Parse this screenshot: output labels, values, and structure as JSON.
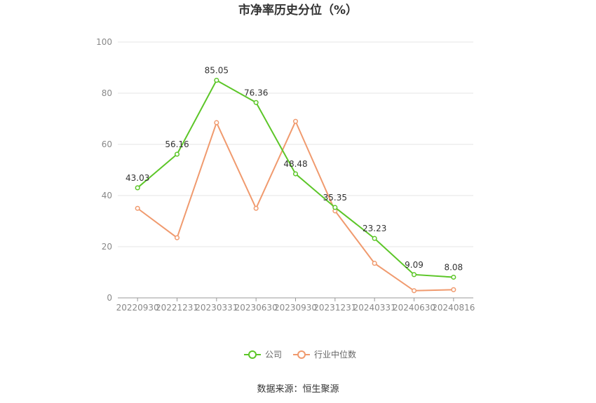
{
  "chart_data": {
    "type": "line",
    "title": "市净率历史分位（%）",
    "xlabel": "",
    "ylabel": "",
    "ylim": [
      0,
      100
    ],
    "yticks": [
      0,
      20,
      40,
      60,
      80,
      100
    ],
    "grid": true,
    "legend_position": "bottom",
    "categories": [
      "20220930",
      "20221231",
      "20230331",
      "20230630",
      "20230930",
      "20231231",
      "20240331",
      "20240630",
      "20240816"
    ],
    "series": [
      {
        "name": "公司",
        "color": "#5cc628",
        "values": [
          43.03,
          56.16,
          85.05,
          76.36,
          48.48,
          35.35,
          23.23,
          9.09,
          8.08
        ],
        "data_labels": [
          "43.03",
          "56.16",
          "85.05",
          "76.36",
          "48.48",
          "35.35",
          "23.23",
          "9.09",
          "8.08"
        ]
      },
      {
        "name": "行业中位数",
        "color": "#f09a6e",
        "values": [
          35.0,
          23.5,
          68.5,
          35.0,
          69.0,
          34.0,
          13.5,
          2.8,
          3.2
        ]
      }
    ],
    "source": "数据来源：恒生聚源"
  }
}
